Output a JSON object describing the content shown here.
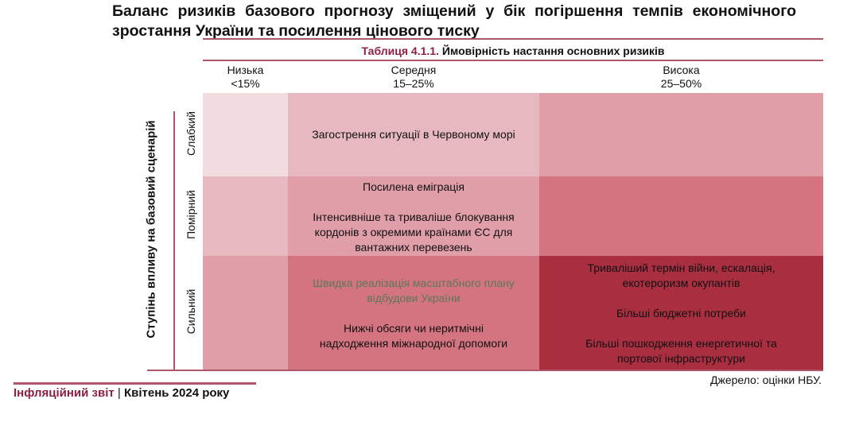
{
  "title": "Баланс ризиків базового прогнозу зміщений у бік погіршення темпів економічного зростання України та посилення цінового тиску",
  "table": {
    "number": "Таблиця 4.1.1.",
    "caption": "Ймовірність настання основних ризиків",
    "columns": [
      {
        "label": "Низька",
        "range": "<15%"
      },
      {
        "label": "Середня",
        "range": "15–25%"
      },
      {
        "label": "Висока",
        "range": "25–50%"
      }
    ],
    "y_axis_label": "Ступінь впливу на базовий сценарій",
    "rows": [
      "Слабкий",
      "Помірний",
      "Сильний"
    ],
    "cells": {
      "weak_mid": [
        "Загострення ситуації в Червоному морі"
      ],
      "moderate_mid": [
        "Посилена еміграція",
        "Інтенсивніше та триваліше блокування кордонів з окремими країнами ЄС для вантажних перевезень"
      ],
      "strong_mid_green": "Швидка реалізація масштабного плану відбудови України",
      "strong_mid": "Нижчі обсяги чи неритмічні надходження міжнародної допомоги",
      "strong_high": [
        "Триваліший термін війни, ескалація, екотероризм окупантів",
        "Більші бюджетні потреби",
        "Більші пошкодження енергетичної та портової інфраструктури"
      ]
    },
    "colors": {
      "c1": "#f2dce0",
      "c2": "#e8b8c0",
      "c3": "#e09ea8",
      "c4": "#d47480",
      "c5": "#a82e40"
    }
  },
  "source": "Джерело: оцінки НБУ.",
  "footer": {
    "report": "Інфляційний звіт",
    "date": "Квітень 2024 року"
  }
}
